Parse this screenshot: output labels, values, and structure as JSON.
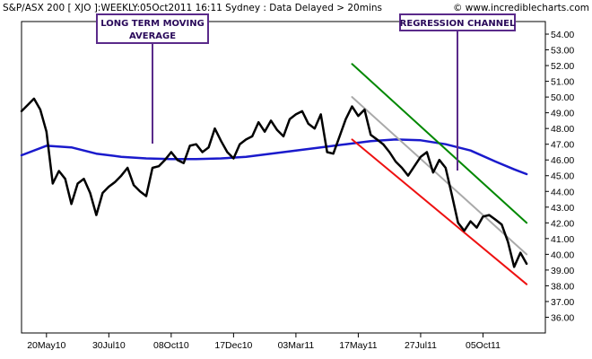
{
  "header": {
    "title": "S&P/ASX 200 [ XJO ]:WEEKLY:05Oct2011 16:11 Sydney : Data Delayed > 20mins",
    "site": "© www.incrediblecharts.com"
  },
  "annotations": {
    "moving_average": {
      "line1": "LONG TERM MOVING",
      "line2": "AVERAGE"
    },
    "regression": {
      "line1": "REGRESSION CHANNEL"
    }
  },
  "colors": {
    "price": "#000000",
    "moving_average": "#1a1acc",
    "channel_upper": "#008800",
    "channel_mid": "#aaaaaa",
    "channel_lower": "#ee1111",
    "annotation_border": "#5a2a8a"
  },
  "chart_data": {
    "type": "line",
    "title": "S&P/ASX 200 [ XJO ]:WEEKLY:05Oct2011 16:11 Sydney : Data Delayed > 20mins",
    "xlabel": "",
    "ylabel": "",
    "x_ticks": [
      "20May10",
      "30Jul10",
      "08Oct10",
      "17Dec10",
      "03Mar11",
      "17May11",
      "27Jul11",
      "05Oct11"
    ],
    "y_ticks": [
      36,
      37,
      38,
      39,
      40,
      41,
      42,
      43,
      44,
      45,
      46,
      47,
      48,
      49,
      50,
      51,
      52,
      53,
      54
    ],
    "y_tick_labels": [
      "36.00",
      "37.00",
      "38.00",
      "39.00",
      "40.00",
      "41.00",
      "42.00",
      "43.00",
      "44.00",
      "45.00",
      "46.00",
      "47.00",
      "48.00",
      "49.00",
      "50.00",
      "51.00",
      "52.00",
      "53.00",
      "54.00"
    ],
    "ylim": [
      35.0,
      54.8
    ],
    "y_axis_position": "right",
    "grid": false,
    "legend": "none",
    "series": [
      {
        "role": "price",
        "x": [
          -4,
          -3,
          -2,
          -1,
          0,
          1,
          2,
          3,
          4,
          5,
          6,
          7,
          8,
          9,
          10,
          11,
          12,
          13,
          14,
          15,
          16,
          17,
          18,
          19,
          20,
          21,
          22,
          23,
          24,
          25,
          26,
          27,
          28,
          29,
          30,
          31,
          32,
          33,
          34,
          35,
          36,
          37,
          38,
          39,
          40,
          41,
          42,
          43,
          44,
          45,
          46,
          47,
          48,
          49,
          50,
          51,
          52,
          53,
          54,
          55,
          56,
          57,
          58,
          59,
          60,
          61,
          62,
          63,
          64,
          65,
          66,
          67,
          68,
          69
        ],
        "values": [
          49.1,
          49.5,
          49.9,
          49.2,
          47.8,
          44.5,
          45.3,
          44.8,
          43.2,
          44.5,
          44.8,
          43.9,
          42.5,
          43.9,
          44.3,
          44.6,
          45.0,
          45.5,
          44.4,
          44.0,
          43.7,
          45.5,
          45.6,
          46.0,
          46.5,
          46.0,
          45.8,
          46.9,
          47.0,
          46.5,
          46.8,
          48.0,
          47.2,
          46.5,
          46.1,
          47.0,
          47.3,
          47.5,
          48.4,
          47.8,
          48.5,
          47.9,
          47.5,
          48.6,
          48.9,
          49.1,
          48.3,
          48.0,
          48.9,
          46.5,
          46.4,
          47.5,
          48.6,
          49.4,
          48.8,
          49.2,
          47.6,
          47.3,
          47.0,
          46.5,
          45.9,
          45.5,
          45.0,
          45.6,
          46.2,
          46.5,
          45.2,
          46.0,
          45.5,
          43.8,
          42.0,
          41.5,
          42.1,
          41.7
        ],
        "values_tail": [
          42.4,
          42.5,
          42.2,
          41.9,
          40.8,
          39.2,
          40.1,
          39.4
        ],
        "x_tail": [
          70,
          71,
          72,
          73,
          74,
          75,
          76,
          77
        ]
      },
      {
        "role": "moving_average",
        "x": [
          -4,
          0,
          4,
          8,
          12,
          16,
          20,
          24,
          28,
          32,
          36,
          40,
          44,
          48,
          52,
          56,
          60,
          64,
          68,
          72,
          75,
          77
        ],
        "values": [
          46.3,
          46.9,
          46.8,
          46.4,
          46.2,
          46.1,
          46.05,
          46.05,
          46.1,
          46.2,
          46.4,
          46.6,
          46.8,
          47.0,
          47.2,
          47.3,
          47.25,
          47.0,
          46.6,
          45.9,
          45.4,
          45.1
        ]
      },
      {
        "role": "channel_upper",
        "x": [
          49,
          77
        ],
        "values": [
          52.1,
          42.0
        ]
      },
      {
        "role": "channel_mid",
        "x": [
          49,
          77
        ],
        "values": [
          50.0,
          40.0
        ]
      },
      {
        "role": "channel_lower",
        "x": [
          49,
          77
        ],
        "values": [
          47.3,
          38.1
        ]
      }
    ],
    "x_tick_positions": [
      0,
      10,
      20,
      30,
      40,
      50,
      60,
      70
    ]
  }
}
